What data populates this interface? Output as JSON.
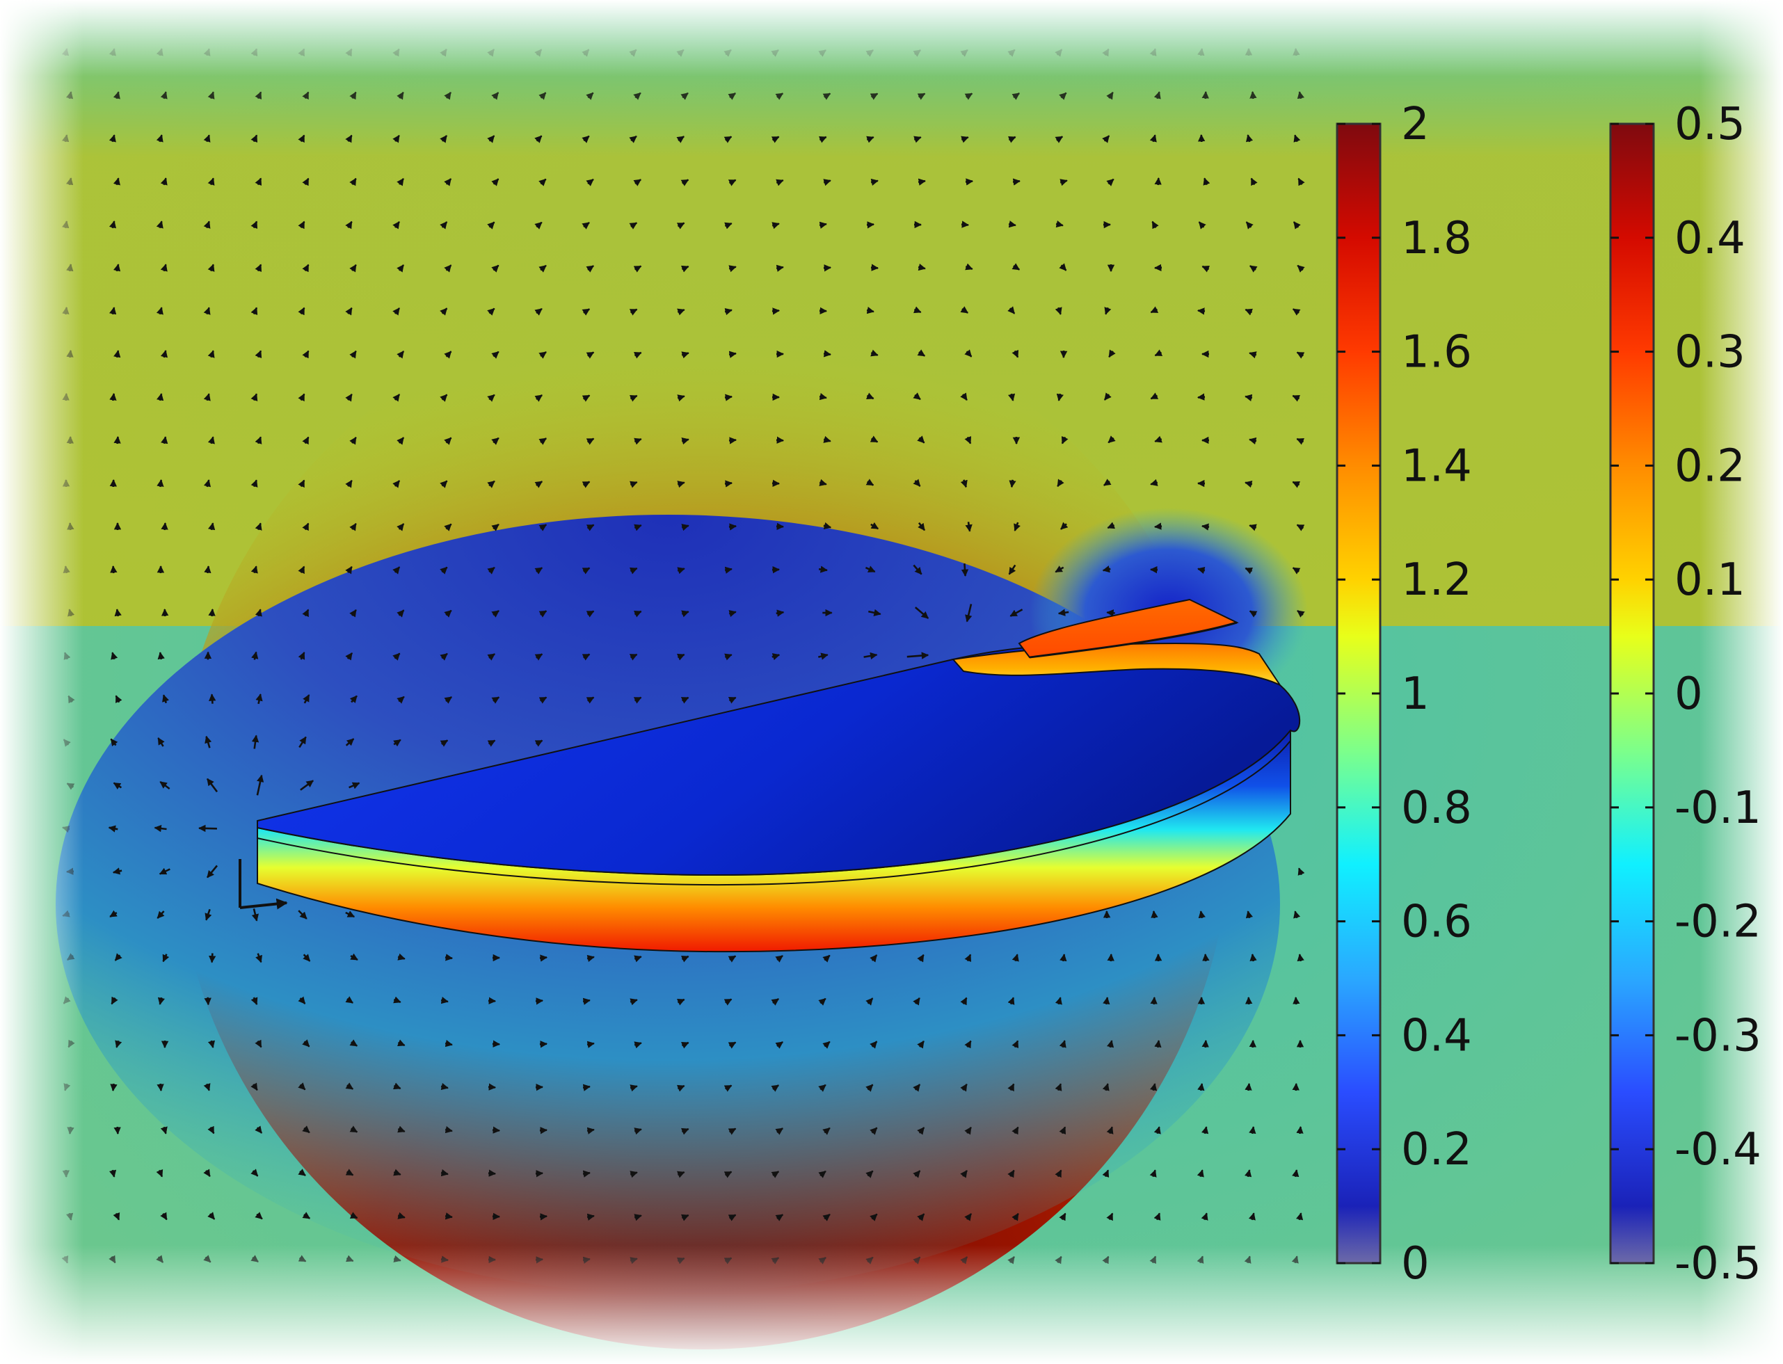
{
  "colorbar_left": {
    "max": 2,
    "min": 0,
    "tick_labels": [
      "2",
      "1.8",
      "1.6",
      "1.4",
      "1.2",
      "1",
      "0.8",
      "0.6",
      "0.4",
      "0.2",
      "0"
    ]
  },
  "colorbar_right": {
    "max": 0.5,
    "min": -0.5,
    "tick_labels": [
      "0.5",
      "0.4",
      "0.3",
      "0.2",
      "0.1",
      "0",
      "-0.1",
      "-0.2",
      "-0.3",
      "-0.4",
      "-0.5"
    ]
  },
  "colormap": [
    "#7f0a0f",
    "#d40a00",
    "#ff3a00",
    "#ff8c00",
    "#ffd200",
    "#e8ff1a",
    "#7dff8a",
    "#10f0ff",
    "#2aa8ff",
    "#2a4dff",
    "#1a22b8"
  ],
  "field_colors": {
    "high": "#9a1a00",
    "mid": "#b7c22a",
    "background": "#4cc2a8",
    "low": "#2d4fc0"
  },
  "arrow_color": "#111111",
  "disk_top_color": "#0f2be0",
  "icons": [
    "coordinate-axes-icon"
  ]
}
